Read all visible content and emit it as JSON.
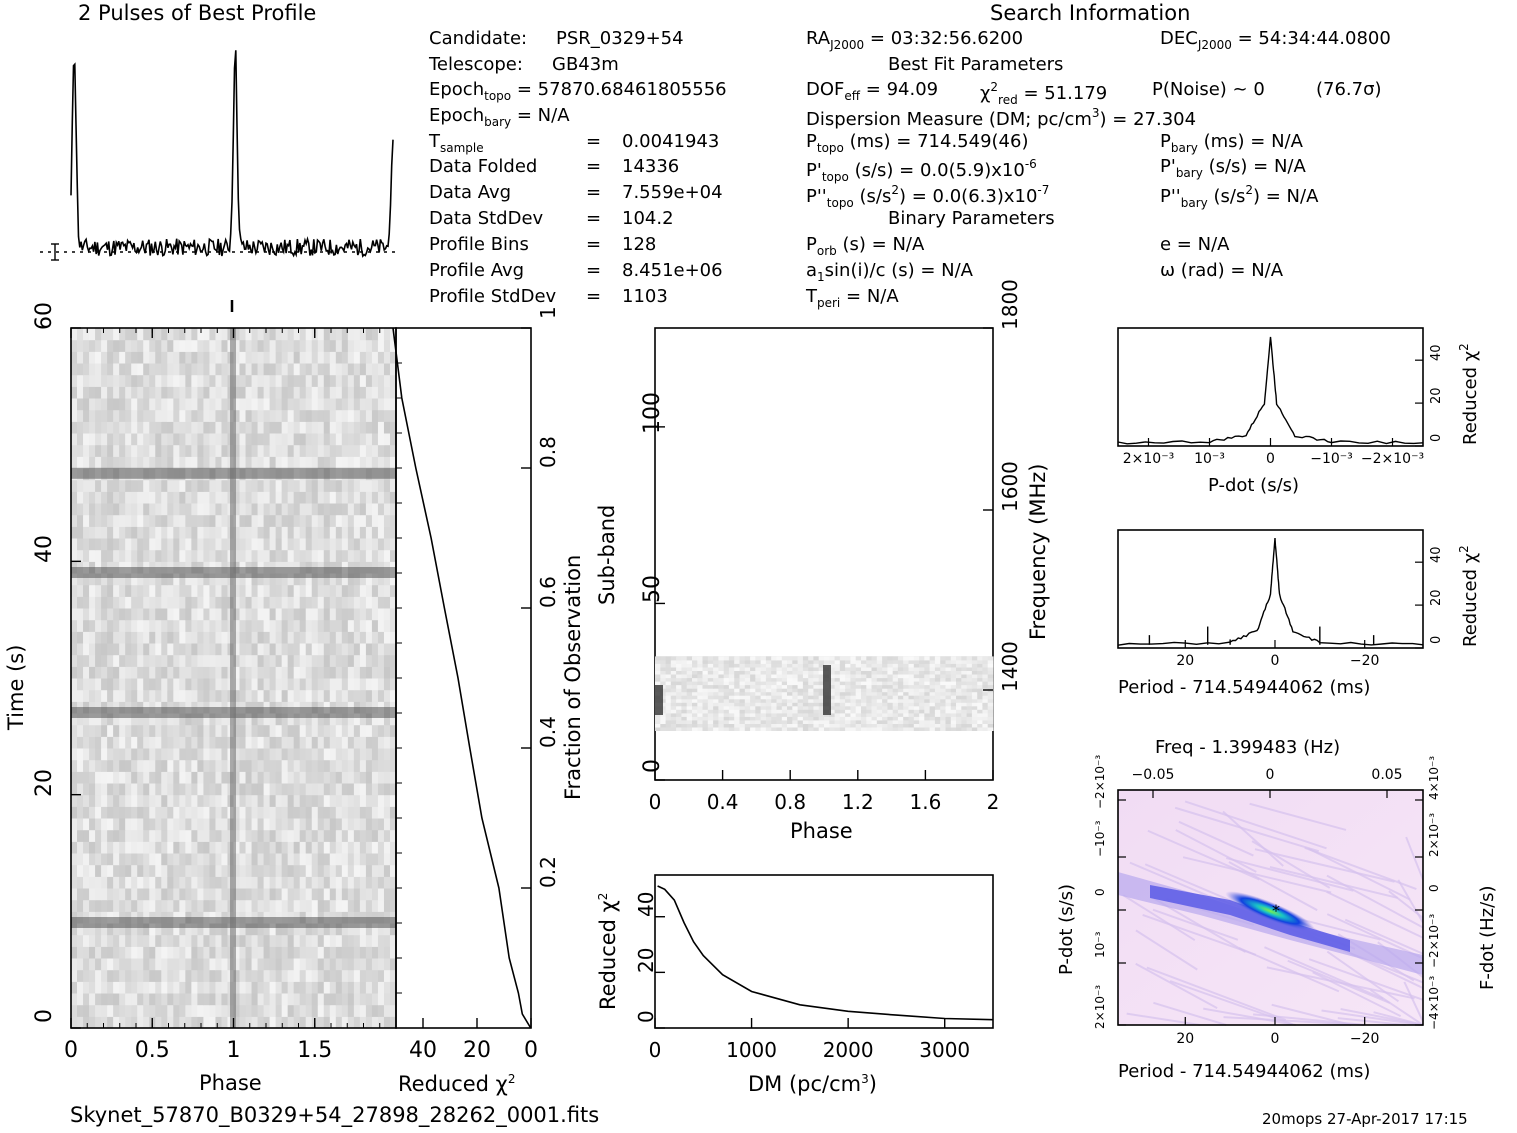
{
  "profile_title": "2 Pulses of Best Profile",
  "search_title": "Search Information",
  "candidate_info": {
    "candidate_label": "Candidate:",
    "candidate_value": "PSR_0329+54",
    "telescope_label": "Telescope:",
    "telescope_value": "GB43m",
    "epoch_topo_label": "Epoch",
    "epoch_topo_sub": "topo",
    "epoch_topo_value": "= 57870.68461805556",
    "epoch_bary_label": "Epoch",
    "epoch_bary_sub": "bary",
    "epoch_bary_value": "= N/A",
    "tsample_label": "T",
    "tsample_sub": "sample",
    "tsample_value": "0.0041943",
    "folded_label": "Data Folded",
    "folded_value": "14336",
    "avg_label": "Data Avg",
    "avg_value": "7.559e+04",
    "stddev_label": "Data StdDev",
    "stddev_value": "104.2",
    "bins_label": "Profile Bins",
    "bins_value": "128",
    "pavg_label": "Profile Avg",
    "pavg_value": "8.451e+06",
    "pstd_label": "Profile StdDev",
    "pstd_value": "1103",
    "equals": "="
  },
  "search_info": {
    "ra_label": "RA",
    "ra_sub": "J2000",
    "ra_value": "= 03:32:56.6200",
    "dec_label": "DEC",
    "dec_sub": "J2000",
    "dec_value": "= 54:34:44.0800",
    "best_fit_header": "Best Fit Parameters",
    "dof_label": "DOF",
    "dof_sub": "eff",
    "dof_value": "= 94.09",
    "chi_label": "χ",
    "chi_sup": "2",
    "chi_sub": "red",
    "chi_value": "= 51.179",
    "pnoise": "P(Noise) ~ 0",
    "sigma": "(76.7σ)",
    "dm_text": "Dispersion Measure (DM; pc/cm",
    "dm_sup": "3",
    "dm_value": ") = 27.304",
    "ptopo_label": "P",
    "ptopo_sub": "topo",
    "ptopo_value": "(ms) =  714.549(46)",
    "pbary_label": "P",
    "pbary_sub": "bary",
    "pbary_value": "(ms) = N/A",
    "pdtopo_label": "P'",
    "pdtopo_sub": "topo",
    "pdtopo_value": "(s/s) = 0.0(5.9)x10",
    "pdtopo_exp": "-6",
    "pdbary_label": "P'",
    "pdbary_sub": "bary",
    "pdbary_value": "(s/s) = N/A",
    "pddtopo_label": "P''",
    "pddtopo_sub": "topo",
    "pddtopo_value": "(s/s",
    "pddtopo_sup": "2",
    "pddtopo_value2": ") = 0.0(6.3)x10",
    "pddtopo_exp": "-7",
    "pddbary_label": "P''",
    "pddbary_sub": "bary",
    "pddbary_value": "(s/s",
    "pddbary_sup": "2",
    "pddbary_value2": ") = N/A",
    "binary_header": "Binary Parameters",
    "porb_label": "P",
    "porb_sub": "orb",
    "porb_value": "(s) = N/A",
    "ecc": "e = N/A",
    "a1_label": "a",
    "a1_sub": "1",
    "a1_value": "sin(i)/c (s) = N/A",
    "omega": "ω (rad) = N/A",
    "tperi_label": "T",
    "tperi_sub": "peri",
    "tperi_value": "= N/A"
  },
  "axis_labels": {
    "time_y": "Time (s)",
    "phase_x": "Phase",
    "reduced_chi_x": "Reduced χ",
    "chi_sup": "2",
    "fraction_obs": "Fraction of Observation",
    "subband_y": "Sub-band",
    "subband_x": "Phase",
    "frequency": "Frequency (MHz)",
    "dm_ylabel": "Reduced χ",
    "dm_xlabel": "DM (pc/cm",
    "dm_xlabel_sup": "3",
    "dm_xlabel_end": ")",
    "pdot_xlabel": "P-dot (s/s)",
    "pdot_ylabel": "Reduced χ",
    "period_xlabel": "Period - 714.54944062 (ms)",
    "period_ylabel": "Reduced χ",
    "freq_top": "Freq - 1.399483 (Hz)",
    "pp_xlabel": "Period - 714.54944062 (ms)",
    "pp_ylabel": "P-dot (s/s)",
    "pp_rlabel": "F-dot (Hz/s)"
  },
  "ticks": {
    "time_y": [
      "0",
      "20",
      "40",
      "60"
    ],
    "phase_x": [
      "0",
      "0.5",
      "1",
      "1.5"
    ],
    "chi_x": [
      "40",
      "20",
      "0"
    ],
    "frac": [
      "0.2",
      "0.4",
      "0.6",
      "0.8",
      "1"
    ],
    "subband_y": [
      "0",
      "50",
      "100"
    ],
    "subband_x": [
      "0",
      "0.4",
      "0.8",
      "1.2",
      "1.6",
      "2"
    ],
    "freq": [
      "1400",
      "1600",
      "1800"
    ],
    "dm_y": [
      "0",
      "20",
      "40"
    ],
    "dm_x": [
      "0",
      "1000",
      "2000",
      "3000"
    ],
    "pdot_y": [
      "0",
      "20",
      "40"
    ],
    "pdot_x": [
      "2×10⁻³",
      "10⁻³",
      "0",
      "−10⁻³",
      "−2×10⁻³"
    ],
    "per_y": [
      "0",
      "20",
      "40"
    ],
    "per_x": [
      "20",
      "0",
      "−20"
    ],
    "freq_x": [
      "−0.05",
      "0",
      "0.05"
    ],
    "pp_x": [
      "20",
      "0",
      "−20"
    ],
    "pp_y": [
      "2×10⁻³",
      "10⁻³",
      "0",
      "−10⁻³",
      "−2×10⁻³"
    ],
    "pp_r": [
      "−4×10⁻³",
      "−2×10⁻³",
      "0",
      "2×10⁻³",
      "4×10⁻³"
    ]
  },
  "footer_file": "Skynet_57870_B0329+54_27898_28262_0001.fits",
  "footer_stamp": "20mops 27-Apr-2017 17:15",
  "chart_data": [
    {
      "type": "line",
      "name_ref": "profile",
      "title": "2 Pulses of Best Profile",
      "x_range": [
        0,
        2
      ],
      "peaks_phase": [
        0.02,
        1.02
      ],
      "peak_level": 1.0,
      "baseline_level": 0.1
    },
    {
      "type": "heatmap",
      "name_ref": "time-phase",
      "xlabel": "Phase",
      "ylabel": "Time (s)",
      "xlim": [
        0,
        2
      ],
      "ylim": [
        0,
        60
      ],
      "dark_rows_s": [
        9,
        27,
        39,
        47.5
      ],
      "pulse_phase": 1.0
    },
    {
      "type": "line",
      "name_ref": "chi-vs-fraction",
      "xlabel": "Reduced χ2",
      "xlim": [
        50,
        0
      ],
      "ylim": [
        0,
        1
      ],
      "points": [
        [
          0,
          0
        ],
        [
          3,
          0.02
        ],
        [
          5,
          0.05
        ],
        [
          8,
          0.1
        ],
        [
          12,
          0.2
        ],
        [
          18,
          0.3
        ],
        [
          23,
          0.4
        ],
        [
          27,
          0.5
        ],
        [
          32,
          0.6
        ],
        [
          37,
          0.7
        ],
        [
          43,
          0.8
        ],
        [
          48,
          0.9
        ],
        [
          51,
          1.0
        ]
      ]
    },
    {
      "type": "heatmap",
      "name_ref": "subband-phase",
      "xlabel": "Phase",
      "ylabel": "Sub-band",
      "xlim": [
        0,
        2
      ],
      "ylim": [
        0,
        128
      ],
      "active_subbands": [
        14,
        35
      ],
      "pulse_phases": [
        0.02,
        1.02
      ],
      "freq_ticks_mhz": [
        1400,
        1600,
        1800
      ]
    },
    {
      "type": "line",
      "name_ref": "dm-chi",
      "xlabel": "DM (pc/cm3)",
      "ylabel": "Reduced χ2",
      "xlim": [
        0,
        3500
      ],
      "ylim": [
        0,
        55
      ],
      "points": [
        [
          27,
          51
        ],
        [
          100,
          50
        ],
        [
          200,
          46
        ],
        [
          300,
          38
        ],
        [
          400,
          31
        ],
        [
          500,
          26
        ],
        [
          700,
          19
        ],
        [
          1000,
          13
        ],
        [
          1500,
          8.5
        ],
        [
          2000,
          6
        ],
        [
          2500,
          4.5
        ],
        [
          3000,
          3.5
        ],
        [
          3500,
          3
        ]
      ]
    },
    {
      "type": "line",
      "name_ref": "pdot-chi",
      "xlabel": "P-dot (s/s)",
      "ylabel": "Reduced χ2",
      "xlim": [
        0.0025,
        -0.0025
      ],
      "ylim": [
        0,
        55
      ],
      "points": [
        [
          0.0025,
          1.5
        ],
        [
          0.001,
          2
        ],
        [
          0.0004,
          5
        ],
        [
          0.0001,
          20
        ],
        [
          0,
          51
        ],
        [
          -0.0001,
          20
        ],
        [
          -0.0004,
          5
        ],
        [
          -0.001,
          2
        ],
        [
          -0.0025,
          1.5
        ]
      ]
    },
    {
      "type": "line",
      "name_ref": "period-chi",
      "xlabel": "Period - 714.54944062 (ms)",
      "ylabel": "Reduced χ2",
      "xlim": [
        35,
        -33
      ],
      "ylim": [
        0,
        55
      ],
      "points": [
        [
          35,
          1.5
        ],
        [
          10,
          2.5
        ],
        [
          4,
          8
        ],
        [
          1,
          25
        ],
        [
          0,
          51
        ],
        [
          -1,
          25
        ],
        [
          -4,
          8
        ],
        [
          -10,
          2.5
        ],
        [
          -33,
          1.5
        ]
      ]
    },
    {
      "type": "heatmap",
      "name_ref": "period-pdot",
      "xlabel": "Period - 714.54944062 (ms)",
      "ylabel": "P-dot (s/s)",
      "top_label": "Freq - 1.399483 (Hz)",
      "right_label": "F-dot (Hz/s)",
      "best_point": [
        0,
        0
      ]
    }
  ]
}
